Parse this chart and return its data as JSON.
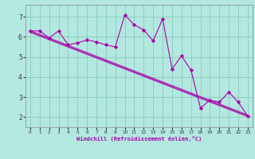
{
  "xlabel": "Windchill (Refroidissement éolien,°C)",
  "bg_color": "#b3e8e0",
  "grid_color": "#88ccbb",
  "line_color": "#aa00aa",
  "xlim": [
    -0.5,
    23.5
  ],
  "ylim": [
    1.5,
    7.6
  ],
  "xticks": [
    0,
    1,
    2,
    3,
    4,
    5,
    6,
    7,
    8,
    9,
    10,
    11,
    12,
    13,
    14,
    15,
    16,
    17,
    18,
    19,
    20,
    21,
    22,
    23
  ],
  "yticks": [
    2,
    3,
    4,
    5,
    6,
    7
  ],
  "data_x": [
    0,
    1,
    2,
    3,
    4,
    5,
    6,
    7,
    8,
    9,
    10,
    11,
    12,
    13,
    14,
    15,
    16,
    17,
    18,
    19,
    20,
    21,
    22,
    23
  ],
  "data_y": [
    6.3,
    6.3,
    5.95,
    6.3,
    5.6,
    5.7,
    5.85,
    5.75,
    5.6,
    5.5,
    7.1,
    6.6,
    6.35,
    5.8,
    6.9,
    4.4,
    5.05,
    4.35,
    2.45,
    2.85,
    2.75,
    3.25,
    2.75,
    2.05
  ],
  "reg_lines": [
    {
      "x": [
        0,
        23
      ],
      "y": [
        6.28,
        2.08
      ]
    },
    {
      "x": [
        0,
        23
      ],
      "y": [
        6.22,
        2.02
      ]
    },
    {
      "x": [
        0,
        23
      ],
      "y": [
        6.32,
        2.12
      ]
    },
    {
      "x": [
        0,
        23
      ],
      "y": [
        6.25,
        2.05
      ]
    }
  ]
}
